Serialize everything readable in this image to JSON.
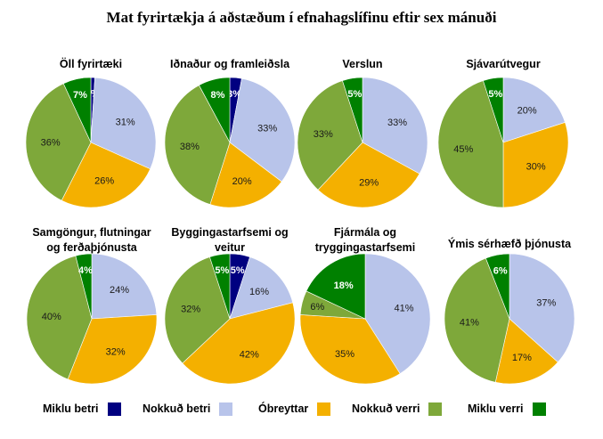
{
  "chart_data": {
    "type": "pie",
    "title": "Mat fyrirtækja á aðstæðum í efnahagslífinu eftir sex mánuði",
    "legend": {
      "position": "bottom",
      "entries": [
        {
          "label": "Miklu betri",
          "color": "#000080"
        },
        {
          "label": "Nokkuð betri",
          "color": "#b8c4ea"
        },
        {
          "label": "Óbreyttar",
          "color": "#f4b000"
        },
        {
          "label": "Nokkuð verri",
          "color": "#7ea83a"
        },
        {
          "label": "Miklu verri",
          "color": "#008000"
        }
      ]
    },
    "pies": [
      {
        "title": [
          "Öll fyrirtæki"
        ],
        "values": [
          1,
          31,
          26,
          36,
          7
        ],
        "labels": [
          "1%",
          "31%",
          "26%",
          "36%",
          "7%"
        ]
      },
      {
        "title": [
          "Iðnaður og framleiðsla"
        ],
        "values": [
          3,
          33,
          20,
          38,
          8
        ],
        "labels": [
          "3%",
          "33%",
          "20%",
          "38%",
          "8%"
        ]
      },
      {
        "title": [
          "Verslun"
        ],
        "values": [
          0,
          33,
          29,
          33,
          5
        ],
        "labels": [
          "",
          "33%",
          "29%",
          "33%",
          "5%"
        ]
      },
      {
        "title": [
          "Sjávarútvegur"
        ],
        "values": [
          0,
          20,
          30,
          45,
          5
        ],
        "labels": [
          "",
          "20%",
          "30%",
          "45%",
          "5%"
        ]
      },
      {
        "title": [
          "Samgöngur, flutningar",
          "og ferðaþjónusta"
        ],
        "values": [
          0,
          24,
          32,
          40,
          4
        ],
        "labels": [
          "",
          "24%",
          "32%",
          "40%",
          "4%"
        ]
      },
      {
        "title": [
          "Byggingastarfsemi og",
          "veitur"
        ],
        "values": [
          5,
          16,
          42,
          32,
          5
        ],
        "labels": [
          "5%",
          "16%",
          "42%",
          "32%",
          "5%"
        ]
      },
      {
        "title": [
          "Fjármála og",
          "tryggingastarfsemi"
        ],
        "values": [
          0,
          41,
          35,
          6,
          18
        ],
        "labels": [
          "",
          "41%",
          "35%",
          "6%",
          "18%"
        ]
      },
      {
        "title": [
          "Ýmis sérhæfð þjónusta"
        ],
        "values": [
          0,
          37,
          17,
          41,
          6
        ],
        "labels": [
          "",
          "37%",
          "17%",
          "41%",
          "6%"
        ]
      }
    ]
  }
}
